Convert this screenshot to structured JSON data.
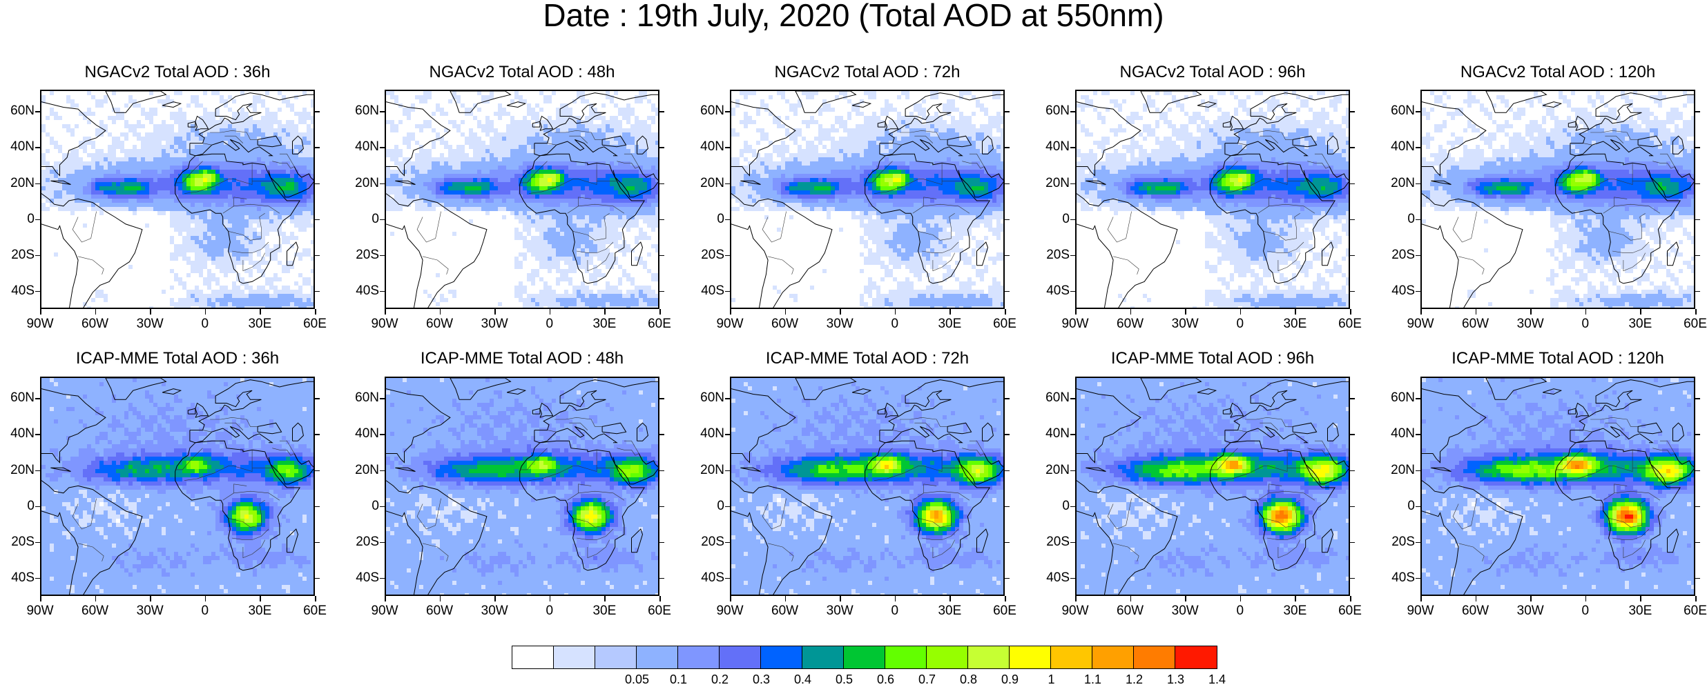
{
  "figure": {
    "title": "Date : 19th July, 2020 (Total AOD at 550nm)"
  },
  "panels": [
    {
      "title": "NGACv2 Total AOD : 36h",
      "model": "ngac"
    },
    {
      "title": "NGACv2 Total AOD : 48h",
      "model": "ngac"
    },
    {
      "title": "NGACv2 Total AOD : 72h",
      "model": "ngac"
    },
    {
      "title": "NGACv2 Total AOD : 96h",
      "model": "ngac"
    },
    {
      "title": "NGACv2 Total AOD : 120h",
      "model": "ngac"
    },
    {
      "title": "ICAP-MME Total AOD : 36h",
      "model": "icap",
      "strength": 0.9
    },
    {
      "title": "ICAP-MME Total AOD : 48h",
      "model": "icap",
      "strength": 1.0
    },
    {
      "title": "ICAP-MME Total AOD : 72h",
      "model": "icap",
      "strength": 1.15
    },
    {
      "title": "ICAP-MME Total AOD : 96h",
      "model": "icap",
      "strength": 1.3
    },
    {
      "title": "ICAP-MME Total AOD : 120h",
      "model": "icap",
      "strength": 1.35
    }
  ],
  "axes": {
    "lat_labels": [
      "60N",
      "40N",
      "20N",
      "0",
      "20S",
      "40S"
    ],
    "lon_labels": [
      "90W",
      "60W",
      "30W",
      "0",
      "30E",
      "60E"
    ],
    "lat_range": [
      -50,
      72
    ],
    "lon_range": [
      -90,
      60
    ]
  },
  "colorbar": {
    "colors": [
      "#ffffff",
      "#d6e2ff",
      "#b5c9ff",
      "#8eb2ff",
      "#7f96ff",
      "#6370f8",
      "#0063ff",
      "#009696",
      "#00c633",
      "#63ff00",
      "#96ff00",
      "#c6ff33",
      "#ffff00",
      "#ffc600",
      "#ffa000",
      "#ff7c00",
      "#ff1900"
    ],
    "labels": [
      "0.05",
      "0.1",
      "0.2",
      "0.3",
      "0.4",
      "0.5",
      "0.6",
      "0.7",
      "0.8",
      "0.9",
      "1",
      "1.1",
      "1.2",
      "1.3",
      "1.4"
    ]
  }
}
